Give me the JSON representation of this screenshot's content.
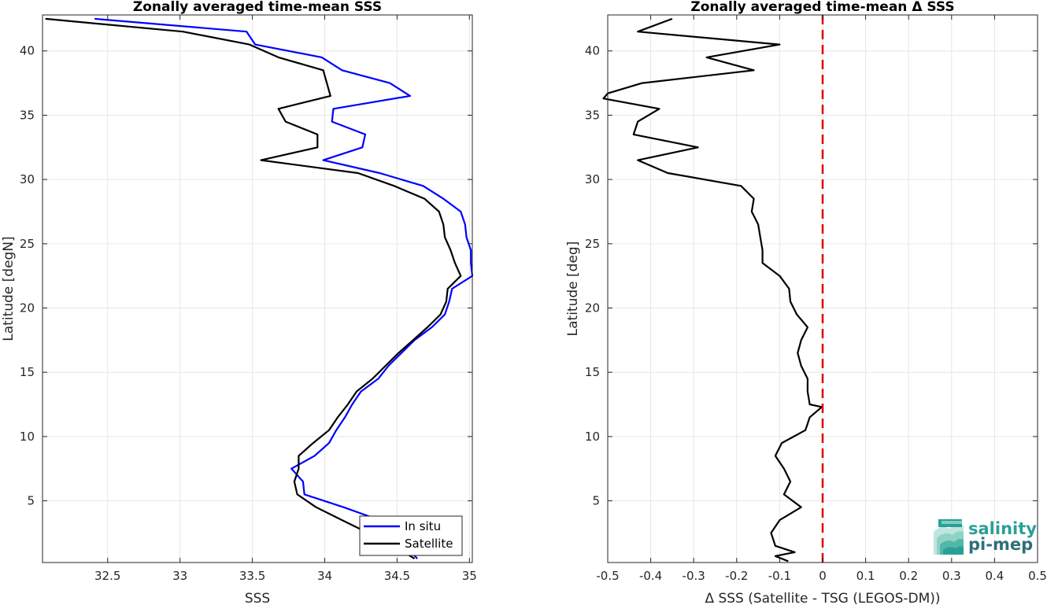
{
  "chart_data": [
    {
      "type": "line",
      "title": "Zonally averaged time-mean SSS",
      "xlabel": "SSS",
      "ylabel": "Latitude [degN]",
      "xlim": [
        32.05,
        35.02
      ],
      "ylim": [
        0.2,
        42.8
      ],
      "xticks": [
        32.5,
        33,
        33.5,
        34,
        34.5,
        35
      ],
      "xtick_labels": [
        "32.5",
        "33",
        "33.5",
        "34",
        "34.5",
        "35"
      ],
      "yticks": [
        5,
        10,
        15,
        20,
        25,
        30,
        35,
        40
      ],
      "ytick_labels": [
        "5",
        "10",
        "15",
        "20",
        "25",
        "30",
        "35",
        "40"
      ],
      "grid": true,
      "legend_position": "bottom-right",
      "series": [
        {
          "name": "In situ",
          "color": "#0000ff",
          "points": [
            [
              32.41,
              42.5
            ],
            [
              33.46,
              41.5
            ],
            [
              33.52,
              40.5
            ],
            [
              33.98,
              39.5
            ],
            [
              34.12,
              38.5
            ],
            [
              34.45,
              37.5
            ],
            [
              34.59,
              36.5
            ],
            [
              34.06,
              35.5
            ],
            [
              34.05,
              34.5
            ],
            [
              34.28,
              33.5
            ],
            [
              34.26,
              32.5
            ],
            [
              33.99,
              31.5
            ],
            [
              34.38,
              30.5
            ],
            [
              34.68,
              29.5
            ],
            [
              34.82,
              28.5
            ],
            [
              34.94,
              27.5
            ],
            [
              34.97,
              26.5
            ],
            [
              34.98,
              25.5
            ],
            [
              35.01,
              24.5
            ],
            [
              35.01,
              23.5
            ],
            [
              35.02,
              22.5
            ],
            [
              34.88,
              21.5
            ],
            [
              34.86,
              20.5
            ],
            [
              34.83,
              19.5
            ],
            [
              34.74,
              18.5
            ],
            [
              34.62,
              17.5
            ],
            [
              34.53,
              16.5
            ],
            [
              34.44,
              15.5
            ],
            [
              34.37,
              14.5
            ],
            [
              34.25,
              13.5
            ],
            [
              34.19,
              12.5
            ],
            [
              34.14,
              11.5
            ],
            [
              34.08,
              10.5
            ],
            [
              34.03,
              9.5
            ],
            [
              33.93,
              8.5
            ],
            [
              33.77,
              7.5
            ],
            [
              33.85,
              6.5
            ],
            [
              33.86,
              5.5
            ],
            [
              34.13,
              4.5
            ],
            [
              34.38,
              3.5
            ],
            [
              34.52,
              2.5
            ],
            [
              34.56,
              1.5
            ],
            [
              34.64,
              0.5
            ]
          ]
        },
        {
          "name": "Satellite",
          "color": "#000000",
          "points": [
            [
              32.07,
              42.5
            ],
            [
              33.02,
              41.5
            ],
            [
              33.48,
              40.5
            ],
            [
              33.68,
              39.5
            ],
            [
              33.99,
              38.5
            ],
            [
              34.04,
              36.5
            ],
            [
              33.68,
              35.5
            ],
            [
              33.73,
              34.5
            ],
            [
              33.95,
              33.5
            ],
            [
              33.95,
              32.5
            ],
            [
              33.56,
              31.5
            ],
            [
              34.23,
              30.5
            ],
            [
              34.48,
              29.5
            ],
            [
              34.69,
              28.5
            ],
            [
              34.79,
              27.5
            ],
            [
              34.82,
              26.5
            ],
            [
              34.83,
              25.5
            ],
            [
              34.87,
              24.5
            ],
            [
              34.9,
              23.5
            ],
            [
              34.94,
              22.5
            ],
            [
              34.85,
              21.5
            ],
            [
              34.84,
              20.5
            ],
            [
              34.8,
              19.5
            ],
            [
              34.71,
              18.5
            ],
            [
              34.61,
              17.5
            ],
            [
              34.51,
              16.5
            ],
            [
              34.42,
              15.5
            ],
            [
              34.33,
              14.5
            ],
            [
              34.22,
              13.5
            ],
            [
              34.16,
              12.5
            ],
            [
              34.09,
              11.5
            ],
            [
              34.03,
              10.5
            ],
            [
              33.92,
              9.5
            ],
            [
              33.82,
              8.5
            ],
            [
              33.82,
              7.5
            ],
            [
              33.79,
              6.5
            ],
            [
              33.81,
              5.5
            ],
            [
              33.94,
              4.5
            ],
            [
              34.12,
              3.5
            ],
            [
              34.3,
              2.5
            ],
            [
              34.48,
              1.5
            ],
            [
              34.62,
              0.5
            ]
          ]
        }
      ]
    },
    {
      "type": "line",
      "title": "Zonally averaged time-mean Δ SSS",
      "xlabel": "Δ SSS (Satellite - TSG (LEGOS-DM))",
      "ylabel": "Latitude [deg]",
      "xlim": [
        -0.5,
        0.5
      ],
      "ylim": [
        0.2,
        42.8
      ],
      "xticks": [
        -0.5,
        -0.4,
        -0.3,
        -0.2,
        -0.1,
        0,
        0.1,
        0.2,
        0.3,
        0.4,
        0.5
      ],
      "xtick_labels": [
        "-0.5",
        "-0.4",
        "-0.3",
        "-0.2",
        "-0.1",
        "0",
        "0.1",
        "0.2",
        "0.3",
        "0.4",
        "0.5"
      ],
      "yticks": [
        5,
        10,
        15,
        20,
        25,
        30,
        35,
        40
      ],
      "ytick_labels": [
        "5",
        "10",
        "15",
        "20",
        "25",
        "30",
        "35",
        "40"
      ],
      "grid": true,
      "reference_line": {
        "x": 0,
        "color": "#dd0000",
        "style": "dashed"
      },
      "series": [
        {
          "color": "#000000",
          "points": [
            [
              -0.35,
              42.5
            ],
            [
              -0.43,
              41.5
            ],
            [
              -0.1,
              40.5
            ],
            [
              -0.27,
              39.5
            ],
            [
              -0.16,
              38.5
            ],
            [
              -0.42,
              37.5
            ],
            [
              -0.5,
              36.7
            ],
            [
              -0.51,
              36.3
            ],
            [
              -0.38,
              35.5
            ],
            [
              -0.43,
              34.5
            ],
            [
              -0.44,
              33.5
            ],
            [
              -0.29,
              32.5
            ],
            [
              -0.43,
              31.5
            ],
            [
              -0.36,
              30.5
            ],
            [
              -0.19,
              29.5
            ],
            [
              -0.16,
              28.5
            ],
            [
              -0.165,
              27.5
            ],
            [
              -0.15,
              26.5
            ],
            [
              -0.145,
              25.5
            ],
            [
              -0.14,
              24.5
            ],
            [
              -0.14,
              23.5
            ],
            [
              -0.1,
              22.5
            ],
            [
              -0.078,
              21.5
            ],
            [
              -0.075,
              20.5
            ],
            [
              -0.06,
              19.5
            ],
            [
              -0.035,
              18.5
            ],
            [
              -0.05,
              17.5
            ],
            [
              -0.058,
              16.5
            ],
            [
              -0.05,
              15.5
            ],
            [
              -0.035,
              14.5
            ],
            [
              -0.035,
              13.5
            ],
            [
              -0.03,
              12.5
            ],
            [
              -0.002,
              12.3
            ],
            [
              -0.03,
              11.5
            ],
            [
              -0.04,
              10.5
            ],
            [
              -0.095,
              9.5
            ],
            [
              -0.11,
              8.5
            ],
            [
              -0.09,
              7.5
            ],
            [
              -0.075,
              6.5
            ],
            [
              -0.09,
              5.5
            ],
            [
              -0.05,
              4.5
            ],
            [
              -0.1,
              3.5
            ],
            [
              -0.12,
              2.5
            ],
            [
              -0.11,
              1.5
            ],
            [
              -0.065,
              1.0
            ],
            [
              -0.11,
              0.7
            ],
            [
              -0.08,
              0.3
            ]
          ]
        }
      ]
    }
  ],
  "legend": {
    "items": [
      "In situ",
      "Satellite"
    ]
  },
  "logo": {
    "line1": "salinity",
    "line2": "pi-mep"
  },
  "colors": {
    "insitu": "#0000ff",
    "satellite": "#000000",
    "reference": "#dd0000",
    "logo_teal": "#2a9f96"
  }
}
